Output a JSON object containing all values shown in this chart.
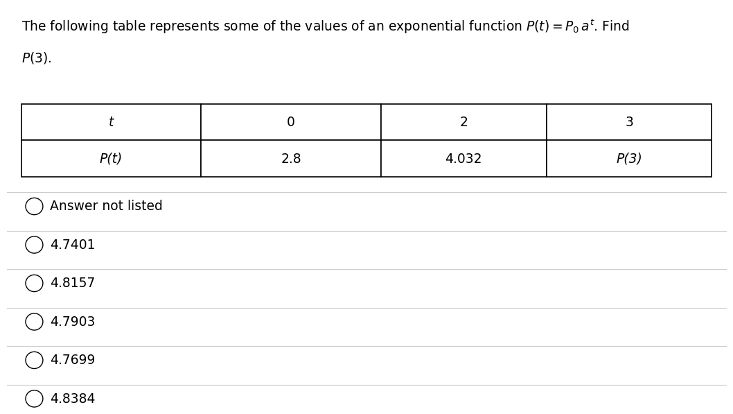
{
  "title_line1": "The following table represents some of the values of an exponential function $P(t) = P_0\\, a^t$. Find",
  "title_line2": "$P(3)$.",
  "table_headers": [
    "t",
    "0",
    "2",
    "3"
  ],
  "table_row2": [
    "P(t)",
    "2.8",
    "4.032",
    "P(3)"
  ],
  "options": [
    "Answer not listed",
    "4.7401",
    "4.8157",
    "4.7903",
    "4.7699",
    "4.8384"
  ],
  "bg_color": "#ffffff",
  "text_color": "#000000",
  "table_border_color": "#000000",
  "option_line_color": "#cccccc",
  "title_fontsize": 13.5,
  "table_fontsize": 13.5,
  "option_fontsize": 13.5
}
